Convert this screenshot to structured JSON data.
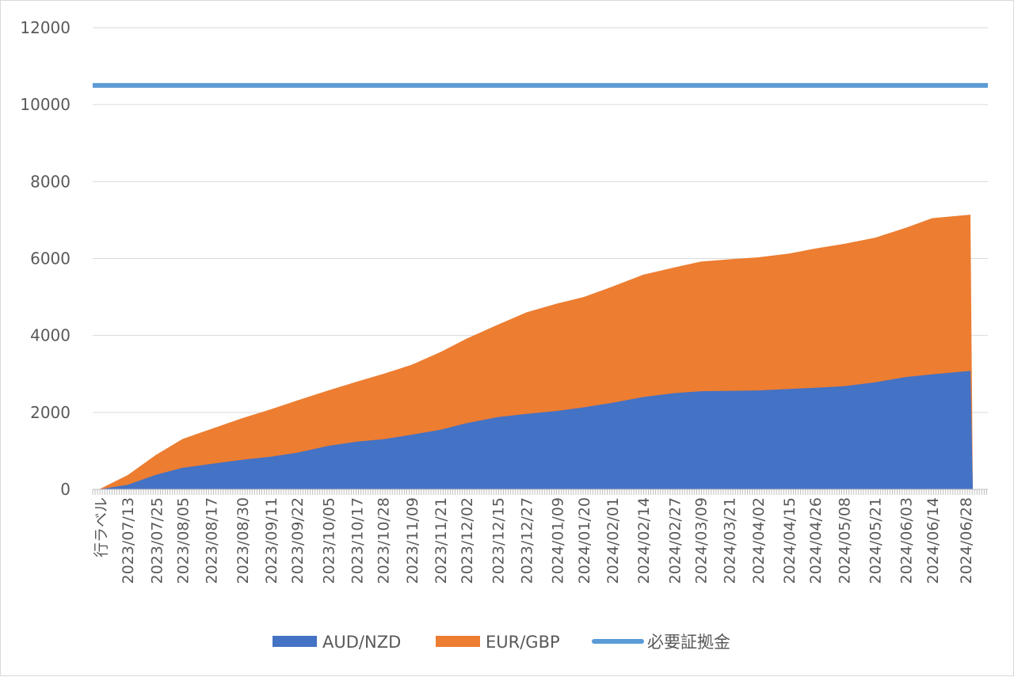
{
  "chart_data": {
    "type": "area",
    "x_axis_first_label": "行ラベル",
    "x_tick_labels": [
      "2023/07/13",
      "2023/07/25",
      "2023/08/05",
      "2023/08/17",
      "2023/08/30",
      "2023/09/11",
      "2023/09/22",
      "2023/10/05",
      "2023/10/17",
      "2023/10/28",
      "2023/11/09",
      "2023/11/21",
      "2023/12/02",
      "2023/12/15",
      "2023/12/27",
      "2024/01/09",
      "2024/01/20",
      "2024/02/01",
      "2024/02/14",
      "2024/02/27",
      "2024/03/09",
      "2024/03/21",
      "2024/04/02",
      "2024/04/15",
      "2024/04/26",
      "2024/05/08",
      "2024/05/21",
      "2024/06/03",
      "2024/06/14",
      "2024/06/28"
    ],
    "y_ticks": [
      "0",
      "2000",
      "4000",
      "6000",
      "8000",
      "10000",
      "12000"
    ],
    "ylim": [
      0,
      12000
    ],
    "grid": true,
    "legend_position": "bottom",
    "series": [
      {
        "name": "AUD/NZD",
        "kind": "stacked-area",
        "color": "#4472C4",
        "x": [
          "2023/07/01",
          "2023/07/13",
          "2023/07/25",
          "2023/08/05",
          "2023/08/17",
          "2023/08/30",
          "2023/09/11",
          "2023/09/22",
          "2023/10/05",
          "2023/10/17",
          "2023/10/28",
          "2023/11/09",
          "2023/11/21",
          "2023/12/02",
          "2023/12/15",
          "2023/12/27",
          "2024/01/09",
          "2024/01/20",
          "2024/02/01",
          "2024/02/14",
          "2024/02/27",
          "2024/03/09",
          "2024/03/21",
          "2024/04/02",
          "2024/04/15",
          "2024/04/26",
          "2024/05/08",
          "2024/05/21",
          "2024/06/03",
          "2024/06/14",
          "2024/06/30"
        ],
        "values": [
          0,
          120,
          380,
          560,
          660,
          770,
          850,
          950,
          1130,
          1240,
          1300,
          1420,
          1550,
          1720,
          1880,
          1960,
          2040,
          2130,
          2250,
          2400,
          2500,
          2550,
          2560,
          2570,
          2610,
          2640,
          2680,
          2780,
          2920,
          2990,
          3080
        ]
      },
      {
        "name": "EUR/GBP",
        "kind": "stacked-area",
        "color": "#ED7D31",
        "x": [
          "2023/07/01",
          "2023/07/13",
          "2023/07/25",
          "2023/08/05",
          "2023/08/17",
          "2023/08/30",
          "2023/09/11",
          "2023/09/22",
          "2023/10/05",
          "2023/10/17",
          "2023/10/28",
          "2023/11/09",
          "2023/11/21",
          "2023/12/02",
          "2023/12/15",
          "2023/12/27",
          "2024/01/09",
          "2024/01/20",
          "2024/02/01",
          "2024/02/14",
          "2024/02/27",
          "2024/03/09",
          "2024/03/21",
          "2024/04/02",
          "2024/04/15",
          "2024/04/26",
          "2024/05/08",
          "2024/05/21",
          "2024/06/03",
          "2024/06/14",
          "2024/06/30"
        ],
        "values": [
          0,
          250,
          520,
          750,
          910,
          1080,
          1230,
          1360,
          1440,
          1560,
          1700,
          1820,
          2020,
          2200,
          2400,
          2640,
          2790,
          2870,
          3020,
          3180,
          3270,
          3370,
          3420,
          3460,
          3520,
          3620,
          3700,
          3760,
          3880,
          4060,
          4060
        ]
      },
      {
        "name": "必要証拠金",
        "kind": "line",
        "color": "#5B9BD5",
        "x": [
          "2023/07/01",
          "2024/06/30"
        ],
        "values": [
          10500,
          10500
        ]
      }
    ]
  }
}
